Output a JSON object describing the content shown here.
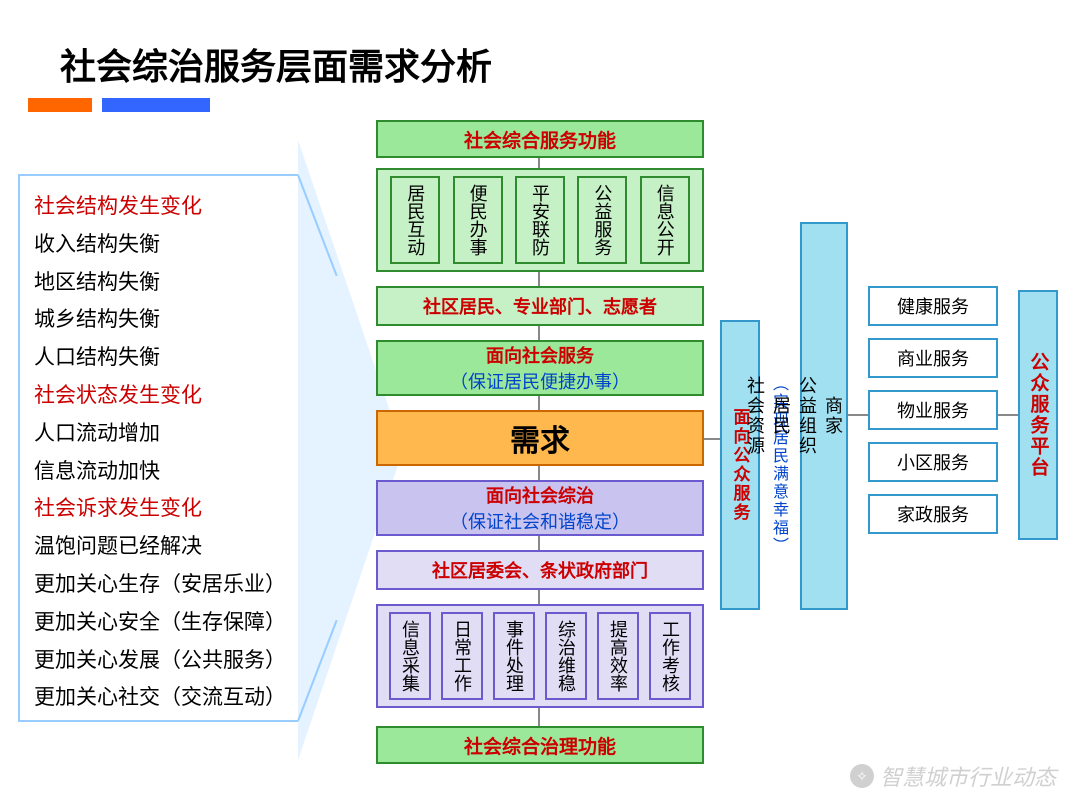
{
  "title": "社会综治服务层面需求分析",
  "accent": {
    "color1": "#ff6600",
    "color2": "#3366ff"
  },
  "left_list": [
    {
      "text": "社会结构发生变化",
      "style": "red"
    },
    {
      "text": "收入结构失衡",
      "style": "blk"
    },
    {
      "text": "地区结构失衡",
      "style": "blk"
    },
    {
      "text": "城乡结构失衡",
      "style": "blk"
    },
    {
      "text": "人口结构失衡",
      "style": "blk"
    },
    {
      "text": "社会状态发生变化",
      "style": "red"
    },
    {
      "text": "人口流动增加",
      "style": "blk"
    },
    {
      "text": "信息流动加快",
      "style": "blk"
    },
    {
      "text": "社会诉求发生变化",
      "style": "red"
    },
    {
      "text": "温饱问题已经解决",
      "style": "blk"
    },
    {
      "text": "更加关心生存（安居乐业）",
      "style": "blk"
    },
    {
      "text": "更加关心安全（生存保障）",
      "style": "blk"
    },
    {
      "text": "更加关心发展（公共服务）",
      "style": "blk"
    },
    {
      "text": "更加关心社交（交流互动）",
      "style": "blk"
    }
  ],
  "top_header": "社会综合服务功能",
  "top_items": [
    "居民互动",
    "便民办事",
    "平安联防",
    "公益服务",
    "信息公开"
  ],
  "actors_top": "社区居民、专业部门、志愿者",
  "service_up": {
    "title": "面向社会服务",
    "sub": "（保证居民便捷办事）"
  },
  "center": "需求",
  "service_down": {
    "title": "面向社会综治",
    "sub": "（保证社会和谐稳定）"
  },
  "actors_bottom": "社区居委会、条状政府部门",
  "bottom_items": [
    "信息采集",
    "日常工作",
    "事件处理",
    "综治维稳",
    "提高效率",
    "工作考核"
  ],
  "bottom_header": "社会综合治理功能",
  "right_col1": {
    "title": "面向公众服务",
    "sub": "（实现居民满意幸福）"
  },
  "right_col2": "商家 公益组织 居民 社会资源",
  "right_services": [
    "健康服务",
    "商业服务",
    "物业服务",
    "小区服务",
    "家政服务"
  ],
  "right_platform": "公众服务平台",
  "watermark": "智慧城市行业动态",
  "colors": {
    "green_fill": "#9be89b",
    "green_border": "#2e8b2e",
    "green_light": "#c6f0c6",
    "lav_fill": "#c9c3f0",
    "lav_border": "#6a5acd",
    "lav_light": "#e0ddf5",
    "orange_fill": "#ffb84d",
    "orange_border": "#cc6600",
    "cyan_fill": "#a0e0f0",
    "cyan_border": "#3399cc",
    "red_text": "#cc0000",
    "blue_text": "#0044cc"
  }
}
